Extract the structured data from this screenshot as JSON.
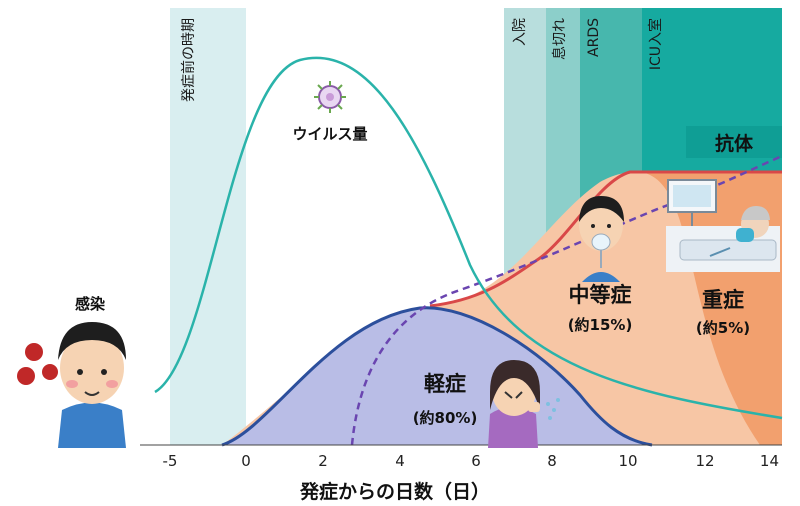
{
  "stages": [
    {
      "label": "発症前の時期"
    },
    {
      "label": "入院"
    },
    {
      "label": "息切れ"
    },
    {
      "label": "ARDS"
    },
    {
      "label": "ICU入室"
    }
  ],
  "labels": {
    "infection": "感染",
    "viral_load": "ウイルス量",
    "antibody": "抗体",
    "mild": "軽症",
    "mild_pct": "(約80%)",
    "moderate": "中等症",
    "moderate_pct": "(約15%)",
    "severe": "重症",
    "severe_pct": "(約5%)"
  },
  "x_axis": {
    "title": "発症からの日数（日）",
    "ticks": [
      "-5",
      "0",
      "2",
      "4",
      "6",
      "8",
      "10",
      "12",
      "14"
    ]
  },
  "colors": {
    "presymptom_band": "#d9eef0",
    "hospital_band": "#b8dedd",
    "dyspnea_band": "#8ccfca",
    "ards_band": "#47b7ad",
    "icu_band": "#16aaa0",
    "viral_curve": "#2ab3aa",
    "mild_fill": "#b9bde6",
    "moderate_fill": "#f7c6a5",
    "severe_fill": "#f2a06e",
    "severe_line": "#d94848",
    "mild_line": "#2c4f9c",
    "antibody_line": "#6a45b0"
  },
  "icons": [
    "virus-icon",
    "infected-boy-icon",
    "coughing-woman-icon",
    "oxygen-mask-boy-icon",
    "icu-bed-icon"
  ]
}
